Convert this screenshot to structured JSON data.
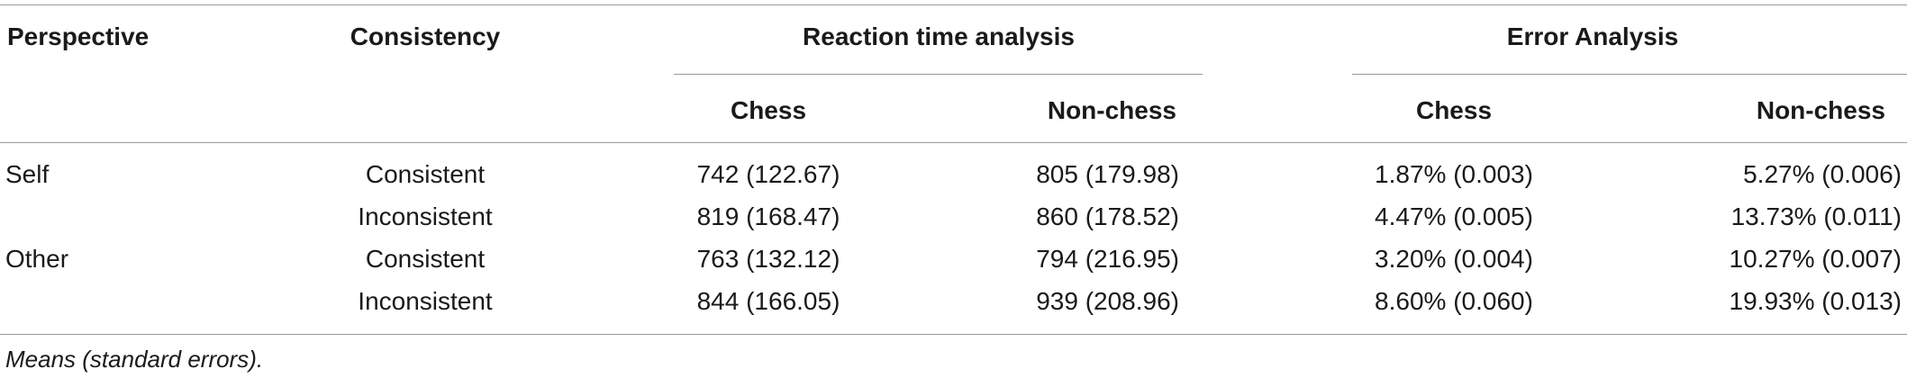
{
  "header": {
    "perspective": "Perspective",
    "consistency": "Consistency",
    "rt_group": "Reaction time analysis",
    "err_group": "Error Analysis",
    "rt_chess": "Chess",
    "rt_nonchess": "Non-chess",
    "err_chess": "Chess",
    "err_nonchess": "Non-chess"
  },
  "rows": [
    {
      "perspective": "Self",
      "consistency": "Consistent",
      "rt_chess": "742 (122.67)",
      "rt_nonchess": "805 (179.98)",
      "err_chess": "1.87% (0.003)",
      "err_nonchess": "5.27% (0.006)"
    },
    {
      "perspective": "",
      "consistency": "Inconsistent",
      "rt_chess": "819 (168.47)",
      "rt_nonchess": "860 (178.52)",
      "err_chess": "4.47% (0.005)",
      "err_nonchess": "13.73% (0.011)"
    },
    {
      "perspective": "Other",
      "consistency": "Consistent",
      "rt_chess": "763 (132.12)",
      "rt_nonchess": "794 (216.95)",
      "err_chess": "3.20% (0.004)",
      "err_nonchess": "10.27% (0.007)"
    },
    {
      "perspective": "",
      "consistency": "Inconsistent",
      "rt_chess": "844 (166.05)",
      "rt_nonchess": "939 (208.96)",
      "err_chess": "8.60% (0.060)",
      "err_nonchess": "19.93% (0.013)"
    }
  ],
  "footnote": "Means (standard errors)."
}
